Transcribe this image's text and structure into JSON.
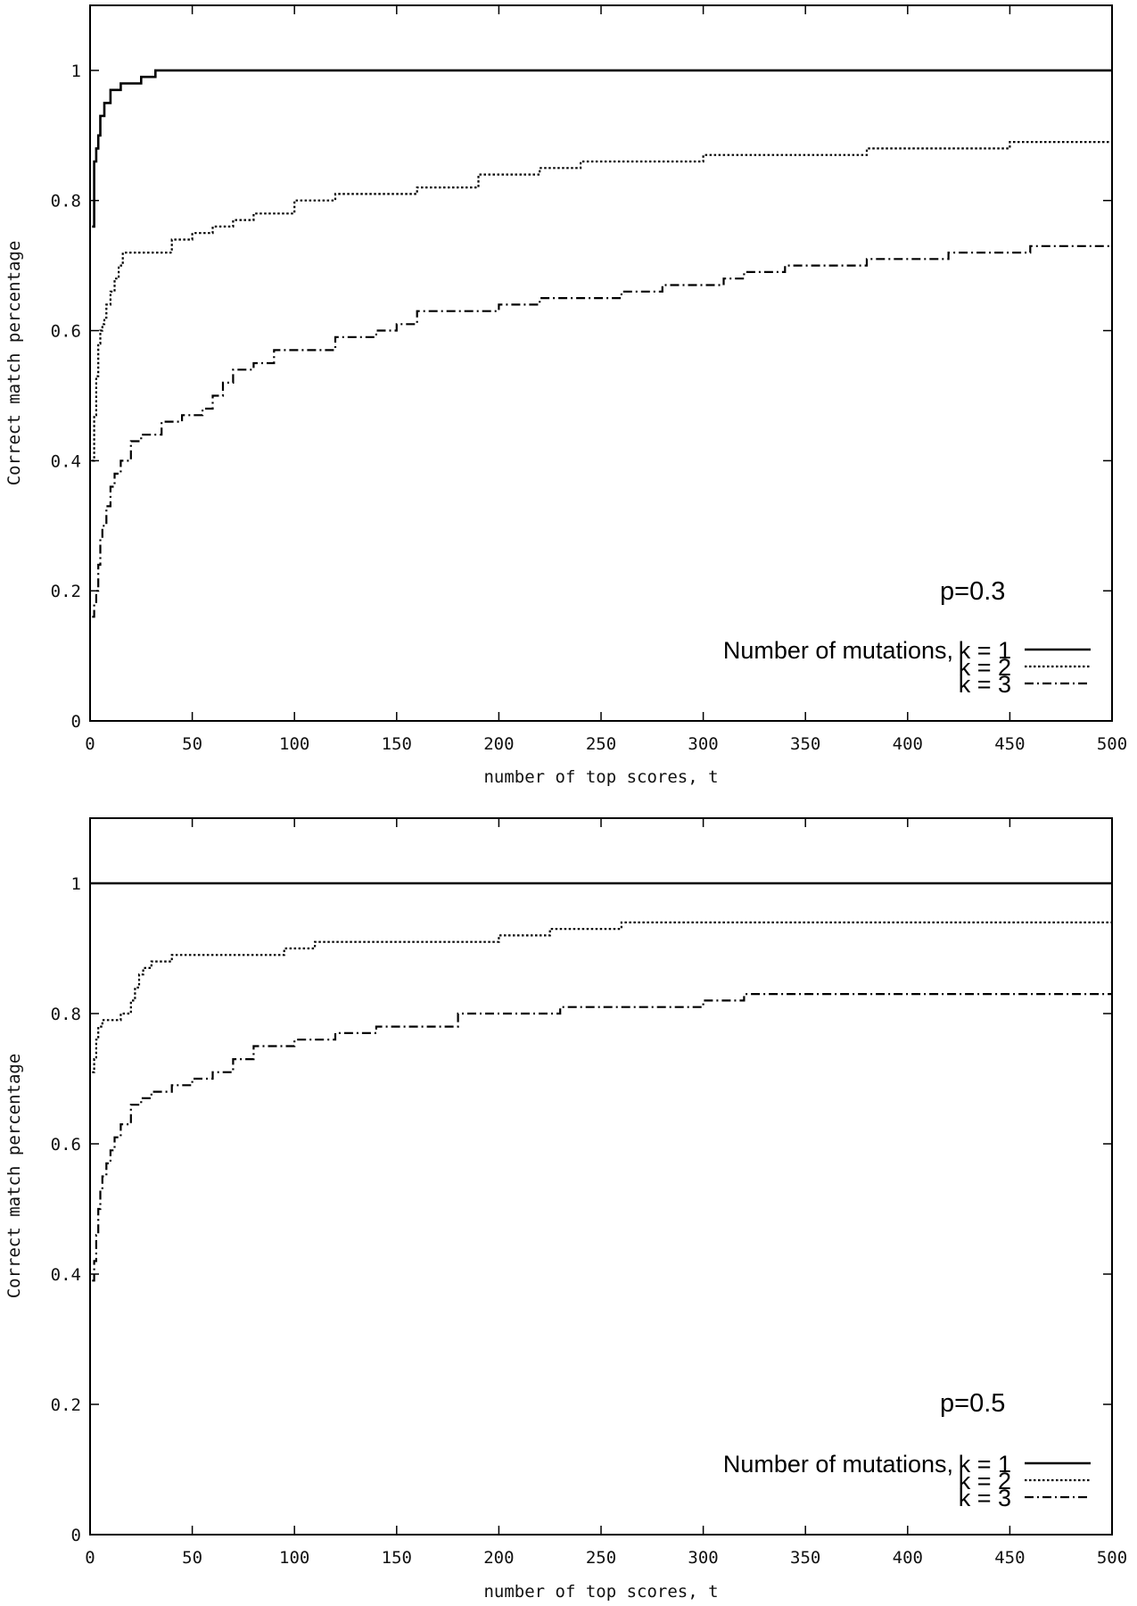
{
  "chart_data": [
    {
      "type": "line",
      "annotation": "p=0.3",
      "xlabel": "number of top scores, t",
      "ylabel": "Correct match percentage",
      "xlim": [
        0,
        500
      ],
      "ylim": [
        0,
        1.1
      ],
      "xticks": [
        "0",
        "50",
        "100",
        "150",
        "200",
        "250",
        "300",
        "350",
        "400",
        "450",
        "500"
      ],
      "yticks": [
        "0",
        "0.2",
        "0.4",
        "0.6",
        "0.8",
        "1"
      ],
      "ytick_values": [
        0,
        0.2,
        0.4,
        0.6,
        0.8,
        1
      ],
      "xtick_values": [
        0,
        50,
        100,
        150,
        200,
        250,
        300,
        350,
        400,
        450,
        500
      ],
      "legend_position": "bottom-right",
      "legend_prefix": "Number of mutations,",
      "series": [
        {
          "name": "k = 1",
          "style": "solid",
          "x": [
            1,
            2,
            3,
            4,
            5,
            7,
            10,
            15,
            25,
            32,
            500
          ],
          "y": [
            0.76,
            0.86,
            0.88,
            0.9,
            0.93,
            0.95,
            0.97,
            0.98,
            0.99,
            1.0,
            1.0
          ]
        },
        {
          "name": "k = 2",
          "style": "dotted",
          "x": [
            1,
            2,
            3,
            4,
            5,
            6,
            7,
            8,
            10,
            12,
            14,
            16,
            30,
            40,
            50,
            60,
            70,
            80,
            90,
            100,
            120,
            160,
            190,
            200,
            220,
            240,
            300,
            350,
            380,
            420,
            450,
            500
          ],
          "y": [
            0.4,
            0.47,
            0.53,
            0.58,
            0.6,
            0.61,
            0.62,
            0.64,
            0.66,
            0.68,
            0.7,
            0.72,
            0.72,
            0.74,
            0.75,
            0.76,
            0.77,
            0.78,
            0.78,
            0.8,
            0.81,
            0.82,
            0.84,
            0.84,
            0.85,
            0.86,
            0.87,
            0.87,
            0.88,
            0.88,
            0.89,
            0.89
          ]
        },
        {
          "name": "k = 3",
          "style": "dash-dot",
          "x": [
            1,
            2,
            3,
            4,
            5,
            6,
            8,
            10,
            12,
            15,
            20,
            25,
            35,
            45,
            55,
            60,
            65,
            70,
            80,
            90,
            110,
            120,
            140,
            150,
            160,
            170,
            200,
            220,
            260,
            280,
            300,
            310,
            320,
            340,
            360,
            380,
            400,
            420,
            440,
            460,
            500
          ],
          "y": [
            0.16,
            0.18,
            0.2,
            0.24,
            0.28,
            0.3,
            0.33,
            0.36,
            0.38,
            0.4,
            0.43,
            0.44,
            0.46,
            0.47,
            0.48,
            0.5,
            0.52,
            0.54,
            0.55,
            0.57,
            0.57,
            0.59,
            0.6,
            0.61,
            0.63,
            0.63,
            0.64,
            0.65,
            0.66,
            0.67,
            0.67,
            0.68,
            0.69,
            0.7,
            0.7,
            0.71,
            0.71,
            0.72,
            0.72,
            0.73,
            0.73
          ]
        }
      ]
    },
    {
      "type": "line",
      "annotation": "p=0.5",
      "xlabel": "number of top scores, t",
      "ylabel": "Correct match percentage",
      "xlim": [
        0,
        500
      ],
      "ylim": [
        0,
        1.1
      ],
      "xticks": [
        "0",
        "50",
        "100",
        "150",
        "200",
        "250",
        "300",
        "350",
        "400",
        "450",
        "500"
      ],
      "yticks": [
        "0",
        "0.2",
        "0.4",
        "0.6",
        "0.8",
        "1"
      ],
      "ytick_values": [
        0,
        0.2,
        0.4,
        0.6,
        0.8,
        1
      ],
      "xtick_values": [
        0,
        50,
        100,
        150,
        200,
        250,
        300,
        350,
        400,
        450,
        500
      ],
      "legend_position": "bottom-right",
      "legend_prefix": "Number of mutations,",
      "series": [
        {
          "name": "k = 1",
          "style": "solid",
          "x": [
            0,
            500
          ],
          "y": [
            1.0,
            1.0
          ]
        },
        {
          "name": "k = 2",
          "style": "dotted",
          "x": [
            1,
            2,
            3,
            4,
            6,
            10,
            15,
            20,
            22,
            24,
            26,
            30,
            40,
            60,
            95,
            110,
            150,
            180,
            200,
            225,
            260,
            300,
            500
          ],
          "y": [
            0.71,
            0.73,
            0.76,
            0.78,
            0.79,
            0.79,
            0.8,
            0.82,
            0.84,
            0.86,
            0.87,
            0.88,
            0.89,
            0.89,
            0.9,
            0.91,
            0.91,
            0.91,
            0.92,
            0.93,
            0.94,
            0.94,
            0.94
          ]
        },
        {
          "name": "k = 3",
          "style": "dash-dot",
          "x": [
            1,
            2,
            3,
            4,
            5,
            6,
            8,
            10,
            12,
            15,
            20,
            25,
            30,
            40,
            50,
            60,
            70,
            80,
            100,
            120,
            140,
            160,
            180,
            230,
            260,
            300,
            320,
            400,
            500
          ],
          "y": [
            0.39,
            0.42,
            0.46,
            0.5,
            0.53,
            0.55,
            0.57,
            0.59,
            0.61,
            0.63,
            0.66,
            0.67,
            0.68,
            0.69,
            0.7,
            0.71,
            0.73,
            0.75,
            0.76,
            0.77,
            0.78,
            0.78,
            0.8,
            0.81,
            0.81,
            0.82,
            0.83,
            0.83,
            0.83
          ]
        }
      ]
    }
  ]
}
